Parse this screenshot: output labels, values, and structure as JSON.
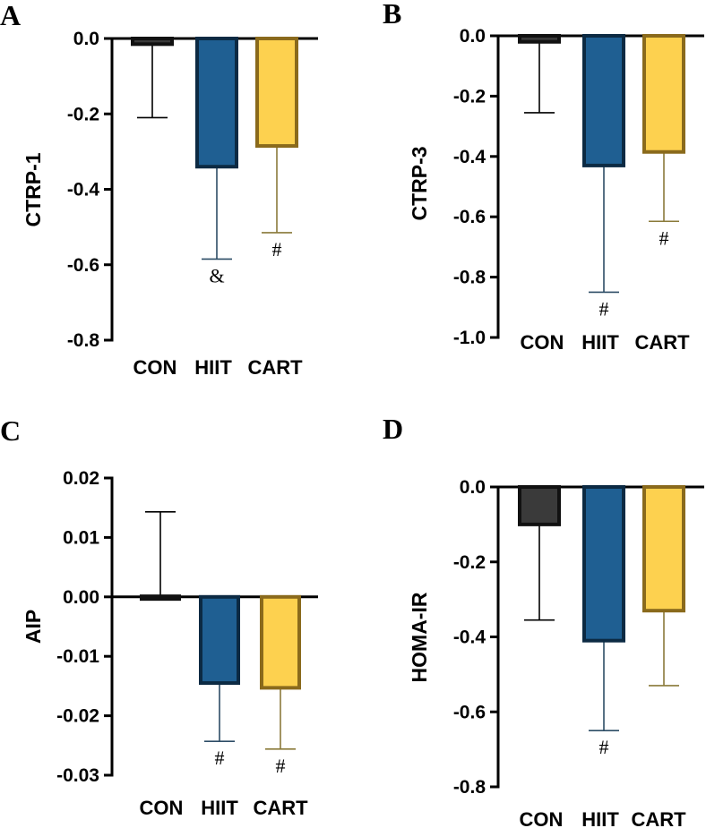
{
  "chart_data": [
    {
      "panel": "A",
      "type": "bar",
      "ylabel": "CTRP-1",
      "categories": [
        "CON",
        "HIIT",
        "CART"
      ],
      "values": [
        -0.015,
        -0.34,
        -0.285
      ],
      "error_bars": [
        -0.21,
        -0.585,
        -0.515
      ],
      "annotations": [
        "",
        "&",
        "#"
      ],
      "ylim": [
        -0.8,
        0.0
      ],
      "yticks": [
        0.0,
        -0.2,
        -0.4,
        -0.6,
        -0.8
      ],
      "ytick_labels": [
        "0.0",
        "-0.2",
        "-0.4",
        "-0.6",
        "-0.8"
      ]
    },
    {
      "panel": "B",
      "type": "bar",
      "ylabel": "CTRP-3",
      "categories": [
        "CON",
        "HIIT",
        "CART"
      ],
      "values": [
        -0.02,
        -0.43,
        -0.385
      ],
      "error_bars": [
        -0.255,
        -0.85,
        -0.615
      ],
      "annotations": [
        "",
        "#",
        "#"
      ],
      "ylim": [
        -1.0,
        0.0
      ],
      "yticks": [
        0.0,
        -0.2,
        -0.4,
        -0.6,
        -0.8,
        -1.0
      ],
      "ytick_labels": [
        "0.0",
        "-0.2",
        "-0.4",
        "-0.6",
        "-0.8",
        "-1.0"
      ]
    },
    {
      "panel": "C",
      "type": "bar",
      "ylabel": "AIP",
      "categories": [
        "CON",
        "HIIT",
        "CART"
      ],
      "values": [
        0.0001,
        -0.0145,
        -0.0153
      ],
      "error_bars": [
        0.0143,
        -0.0243,
        -0.0256
      ],
      "annotations": [
        "",
        "#",
        "#"
      ],
      "ylim": [
        -0.03,
        0.02
      ],
      "yticks": [
        0.02,
        0.01,
        0.0,
        -0.01,
        -0.02,
        -0.03
      ],
      "ytick_labels": [
        "0.02",
        "0.01",
        "0.00",
        "-0.01",
        "-0.02",
        "-0.03"
      ]
    },
    {
      "panel": "D",
      "type": "bar",
      "ylabel": "HOMA-IR",
      "categories": [
        "CON",
        "HIIT",
        "CART"
      ],
      "values": [
        -0.1,
        -0.41,
        -0.33
      ],
      "error_bars": [
        -0.355,
        -0.65,
        -0.53
      ],
      "annotations": [
        "",
        "#",
        ""
      ],
      "ylim": [
        -0.8,
        0.0
      ],
      "yticks": [
        0.0,
        -0.2,
        -0.4,
        -0.6,
        -0.8
      ],
      "ytick_labels": [
        "0.0",
        "-0.2",
        "-0.4",
        "-0.6",
        "-0.8"
      ]
    }
  ],
  "colors": {
    "CON": {
      "fill": "#3a3a3a",
      "stroke": "#111111",
      "err": "#000000"
    },
    "HIIT": {
      "fill": "#1f5f92",
      "stroke": "#0c2a43",
      "err": "#2d4d66"
    },
    "CART": {
      "fill": "#fdd14f",
      "stroke": "#8a6a1c",
      "err": "#8a7a3a"
    }
  }
}
